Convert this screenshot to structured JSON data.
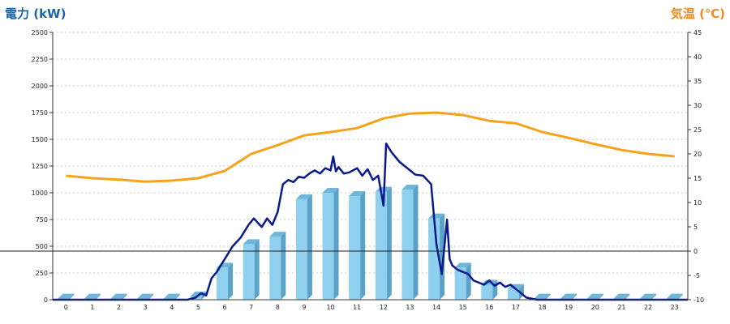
{
  "chart_data": {
    "type": "bar",
    "title_left": "電力 (kW)",
    "title_right": "気温 (℃)",
    "colors": {
      "left_title": "#1a63a8",
      "right_title": "#f08a1c",
      "bar_front": "#8fd0ee",
      "bar_side": "#5aa3c6",
      "bar_top": "#6fb6d9",
      "power_line": "#0a1a8c",
      "temp_line": "#f7a21b",
      "grid": "#c8c8c8"
    },
    "x_categories": [
      "0",
      "1",
      "2",
      "3",
      "4",
      "5",
      "6",
      "7",
      "8",
      "9",
      "10",
      "11",
      "12",
      "13",
      "14",
      "15",
      "16",
      "17",
      "18",
      "19",
      "20",
      "21",
      "22",
      "23"
    ],
    "y_left": {
      "min": 0,
      "max": 2500,
      "ticks": [
        "0",
        "250",
        "500",
        "750",
        "1000",
        "1250",
        "1500",
        "1750",
        "2000",
        "2250",
        "2500"
      ]
    },
    "y_right": {
      "min": -10,
      "max": 45,
      "ticks": [
        "-10",
        "-5",
        "0",
        "5",
        "10",
        "15",
        "20",
        "25",
        "30",
        "35",
        "40",
        "45"
      ]
    },
    "bars": {
      "name": "hourly power",
      "values": [
        10,
        10,
        10,
        10,
        10,
        30,
        300,
        520,
        590,
        940,
        1000,
        970,
        1010,
        1030,
        760,
        300,
        140,
        100,
        10,
        10,
        10,
        10,
        10,
        10
      ]
    },
    "power_line": {
      "name": "power",
      "x": [
        4.6,
        4.9,
        5.1,
        5.3,
        5.5,
        5.7,
        6.0,
        6.3,
        6.6,
        6.9,
        7.1,
        7.4,
        7.6,
        7.8,
        8.0,
        8.2,
        8.4,
        8.6,
        8.8,
        9.0,
        9.2,
        9.4,
        9.6,
        9.8,
        10.0,
        10.1,
        10.2,
        10.3,
        10.5,
        10.7,
        11.0,
        11.2,
        11.4,
        11.6,
        11.8,
        12.0,
        12.1,
        12.3,
        12.6,
        12.9,
        13.2,
        13.5,
        13.8,
        14.0,
        14.2,
        14.4,
        14.5,
        14.6,
        14.8,
        15.0,
        15.2,
        15.4,
        15.6,
        15.8,
        16.0,
        16.2,
        16.4,
        16.6,
        16.8,
        17.0,
        17.2,
        17.4,
        17.6,
        17.8
      ],
      "values": [
        0,
        20,
        60,
        40,
        200,
        260,
        380,
        500,
        580,
        700,
        760,
        680,
        760,
        700,
        820,
        1080,
        1120,
        1100,
        1150,
        1140,
        1180,
        1210,
        1180,
        1230,
        1210,
        1340,
        1200,
        1240,
        1180,
        1190,
        1230,
        1160,
        1220,
        1120,
        1160,
        880,
        1460,
        1380,
        1290,
        1230,
        1170,
        1160,
        1080,
        520,
        240,
        750,
        380,
        320,
        280,
        260,
        240,
        180,
        160,
        140,
        180,
        130,
        160,
        120,
        140,
        100,
        60,
        20,
        10,
        0
      ]
    },
    "temp_line": {
      "name": "temperature",
      "x": [
        0,
        1,
        2,
        3,
        4,
        5,
        6,
        7,
        8,
        9,
        10,
        11,
        12,
        13,
        14,
        15,
        16,
        17,
        18,
        19,
        20,
        21,
        22,
        23
      ],
      "values": [
        15.5,
        15.0,
        14.7,
        14.3,
        14.5,
        15.0,
        16.5,
        20.0,
        21.8,
        23.8,
        24.5,
        25.3,
        27.3,
        28.3,
        28.5,
        28.0,
        26.8,
        26.3,
        24.5,
        23.3,
        22.0,
        20.8,
        20.0,
        19.5
      ]
    }
  }
}
